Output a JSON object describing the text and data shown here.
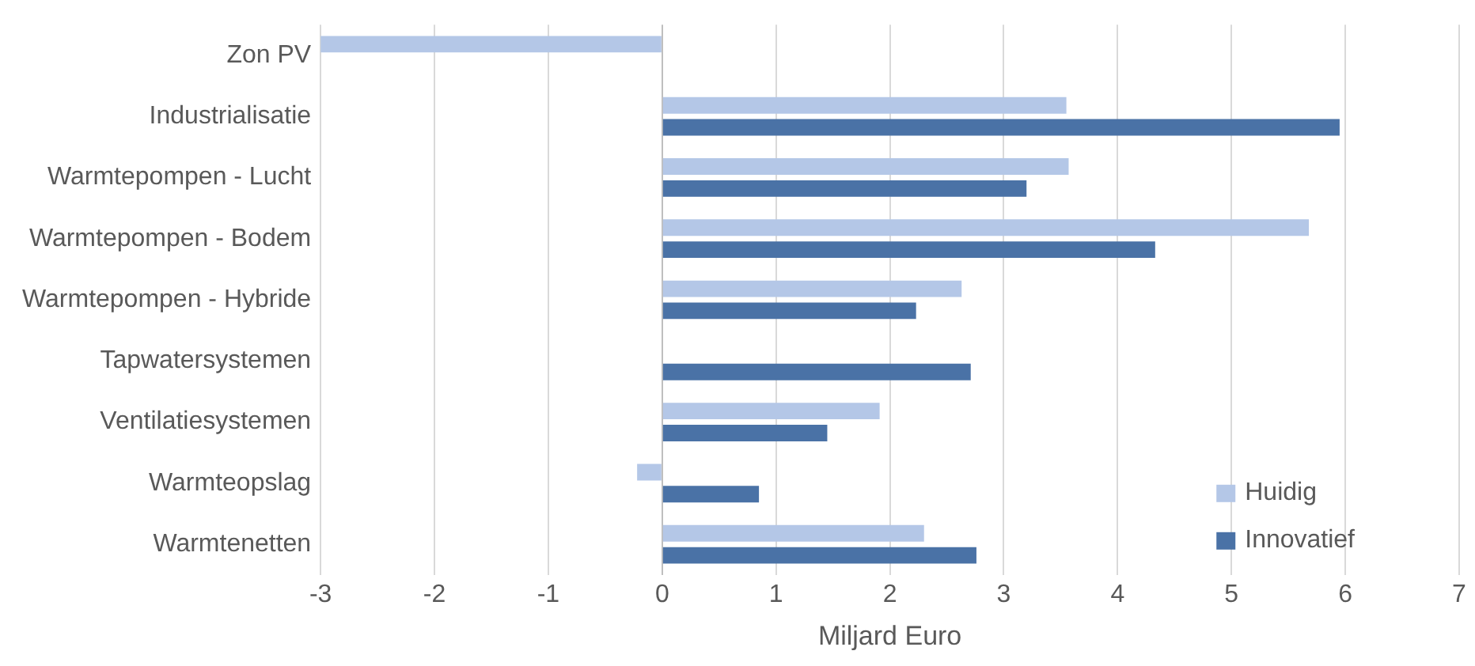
{
  "chart_data": {
    "type": "bar",
    "orientation": "horizontal",
    "xlabel": "Miljard Euro",
    "categories": [
      "Zon PV",
      "Industrialisatie",
      "Warmtepompen - Lucht",
      "Warmtepompen - Bodem",
      "Warmtepompen - Hybride",
      "Tapwatersystemen",
      "Ventilatiesystemen",
      "Warmteopslag",
      "Warmtenetten"
    ],
    "series": [
      {
        "name": "Huidig",
        "color": "#b4c7e7",
        "values": [
          -3,
          3.55,
          3.57,
          5.68,
          2.63,
          null,
          1.91,
          -0.22,
          2.3
        ]
      },
      {
        "name": "Innovatief",
        "color": "#4a72a6",
        "values": [
          null,
          5.95,
          3.2,
          4.33,
          2.23,
          2.71,
          1.45,
          0.85,
          2.76
        ]
      }
    ],
    "xlim": [
      -3,
      7
    ],
    "xticks": [
      -3,
      -2,
      -1,
      0,
      1,
      2,
      3,
      4,
      5,
      6,
      7
    ],
    "grid": "x",
    "legend": "bottom right"
  }
}
